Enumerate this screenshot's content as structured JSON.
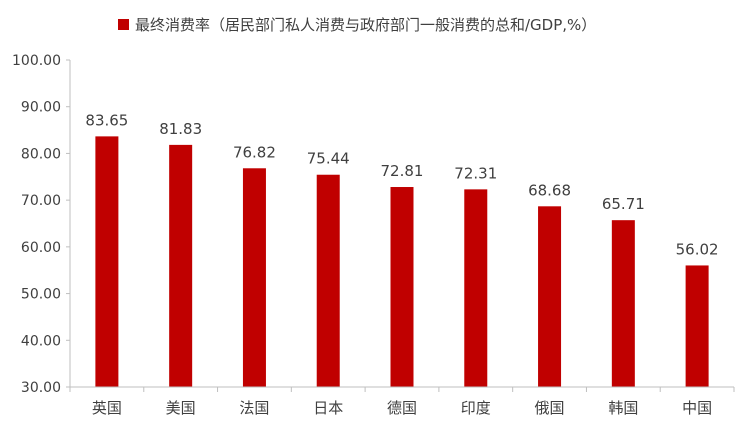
{
  "chart_data": {
    "type": "bar",
    "legend": "最终消费率（居民部门私人消费与政府部门一般消费的总和/GDP,%）",
    "legend_position": "top",
    "categories": [
      "英国",
      "美国",
      "法国",
      "日本",
      "德国",
      "印度",
      "俄国",
      "韩国",
      "中国"
    ],
    "series": [
      {
        "name": "最终消费率（居民部门私人消费与政府部门一般消费的总和/GDP,%）",
        "values": [
          83.65,
          81.83,
          76.82,
          75.44,
          72.81,
          72.31,
          68.68,
          65.71,
          56.02
        ],
        "labels": [
          "83.65",
          "81.83",
          "76.82",
          "75.44",
          "72.81",
          "72.31",
          "68.68",
          "65.71",
          "56.02"
        ]
      }
    ],
    "ylim": [
      30,
      100
    ],
    "yticks": [
      30,
      40,
      50,
      60,
      70,
      80,
      90,
      100
    ],
    "ytick_labels": [
      "30.00",
      "40.00",
      "50.00",
      "60.00",
      "70.00",
      "80.00",
      "90.00",
      "100.00"
    ],
    "grid": false,
    "colors": {
      "bar": "#c00000",
      "axis": "#bfbfbf",
      "text": "#404040"
    }
  }
}
